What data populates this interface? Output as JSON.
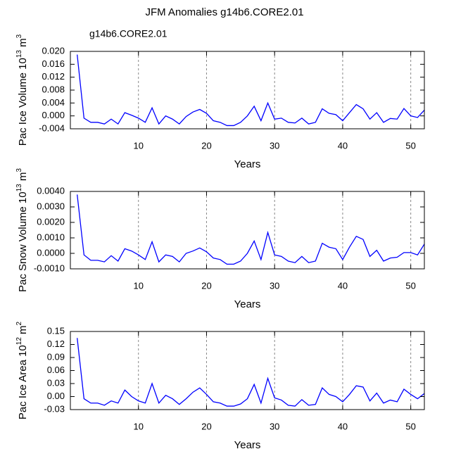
{
  "chart_data": [
    {
      "type": "line",
      "title": "JFM Anomalies g14b6.CORE2.01",
      "subtitle": "g14b6.CORE2.01",
      "ylabel_parts": [
        "Pac Ice Volume 10",
        "13",
        " m",
        "3"
      ],
      "xlabel": "Years",
      "x": [
        1,
        2,
        3,
        4,
        5,
        6,
        7,
        8,
        9,
        10,
        11,
        12,
        13,
        14,
        15,
        16,
        17,
        18,
        19,
        20,
        21,
        22,
        23,
        24,
        25,
        26,
        27,
        28,
        29,
        30,
        31,
        32,
        33,
        34,
        35,
        36,
        37,
        38,
        39,
        40,
        41,
        42,
        43,
        44,
        45,
        46,
        47,
        48,
        49,
        50,
        51,
        52
      ],
      "series": [
        {
          "name": "g14b6.CORE2.01",
          "color": "#0000ff",
          "values": [
            0.019,
            -0.0007,
            -0.002,
            -0.002,
            -0.0025,
            -0.001,
            -0.0025,
            0.001,
            0.0002,
            -0.0007,
            -0.002,
            0.0025,
            -0.0025,
            0.0,
            -0.001,
            -0.0025,
            -0.0002,
            0.0012,
            0.002,
            0.0008,
            -0.0015,
            -0.002,
            -0.003,
            -0.003,
            -0.002,
            0.0,
            0.003,
            -0.0015,
            0.004,
            -0.001,
            -0.0007,
            -0.002,
            -0.0022,
            -0.0007,
            -0.0025,
            -0.002,
            0.0022,
            0.0008,
            0.0004,
            -0.0015,
            0.001,
            0.0035,
            0.0022,
            -0.001,
            0.001,
            -0.002,
            -0.0008,
            -0.001,
            0.0023,
            0.0,
            -0.0005,
            0.0018
          ]
        }
      ],
      "xlim": [
        0,
        52
      ],
      "xticks": [
        10,
        20,
        30,
        40,
        50
      ],
      "ylim": [
        -0.004,
        0.02
      ],
      "yticks": [
        {
          "value": 0.02,
          "label": "0.020"
        },
        {
          "value": 0.016,
          "label": "0.016"
        },
        {
          "value": 0.012,
          "label": "0.012"
        },
        {
          "value": 0.008,
          "label": "0.008"
        },
        {
          "value": 0.004,
          "label": "0.004"
        },
        {
          "value": 0,
          "label": "0.000"
        },
        {
          "value": -0.004,
          "label": "-0.004"
        }
      ],
      "xgrid": true
    },
    {
      "type": "line",
      "ylabel_parts": [
        "Pac Snow Volume 10",
        "13",
        " m",
        "3"
      ],
      "xlabel": "Years",
      "x": [
        1,
        2,
        3,
        4,
        5,
        6,
        7,
        8,
        9,
        10,
        11,
        12,
        13,
        14,
        15,
        16,
        17,
        18,
        19,
        20,
        21,
        22,
        23,
        24,
        25,
        26,
        27,
        28,
        29,
        30,
        31,
        32,
        33,
        34,
        35,
        36,
        37,
        38,
        39,
        40,
        41,
        42,
        43,
        44,
        45,
        46,
        47,
        48,
        49,
        50,
        51,
        52
      ],
      "series": [
        {
          "color": "#0000ff",
          "values": [
            0.0038,
            -0.0001,
            -0.00045,
            -0.00045,
            -0.00055,
            -0.00015,
            -0.0005,
            0.0003,
            0.00015,
            -0.0001,
            -0.0004,
            0.00075,
            -0.00055,
            -0.0001,
            -0.0002,
            -0.00055,
            0.0,
            0.00015,
            0.00035,
            0.0001,
            -0.0003,
            -0.0004,
            -0.0007,
            -0.0007,
            -0.0005,
            0.0,
            0.0008,
            -0.0004,
            0.00135,
            -0.0001,
            -0.0002,
            -0.0005,
            -0.0006,
            -0.0002,
            -0.0006,
            -0.0005,
            0.00065,
            0.0004,
            0.0003,
            -0.0004,
            0.0004,
            0.0011,
            0.0009,
            -0.0002,
            0.0002,
            -0.0005,
            -0.0003,
            -0.00025,
            5e-05,
            5e-05,
            -0.0001,
            0.0006
          ]
        }
      ],
      "xlim": [
        0,
        52
      ],
      "xticks": [
        10,
        20,
        30,
        40,
        50
      ],
      "ylim": [
        -0.001,
        0.004
      ],
      "yticks": [
        {
          "value": 0.004,
          "label": "0.0040"
        },
        {
          "value": 0.003,
          "label": "0.0030"
        },
        {
          "value": 0.002,
          "label": "0.0020"
        },
        {
          "value": 0.001,
          "label": "0.0010"
        },
        {
          "value": 0,
          "label": "0.0000"
        },
        {
          "value": -0.001,
          "label": "-0.0010"
        }
      ],
      "xgrid": true
    },
    {
      "type": "line",
      "ylabel_parts": [
        "Pac Ice Area 10",
        "12",
        " m",
        "2"
      ],
      "xlabel": "Years",
      "x": [
        1,
        2,
        3,
        4,
        5,
        6,
        7,
        8,
        9,
        10,
        11,
        12,
        13,
        14,
        15,
        16,
        17,
        18,
        19,
        20,
        21,
        22,
        23,
        24,
        25,
        26,
        27,
        28,
        29,
        30,
        31,
        32,
        33,
        34,
        35,
        36,
        37,
        38,
        39,
        40,
        41,
        42,
        43,
        44,
        45,
        46,
        47,
        48,
        49,
        50,
        51,
        52
      ],
      "series": [
        {
          "color": "#0000ff",
          "values": [
            0.135,
            -0.005,
            -0.015,
            -0.015,
            -0.02,
            -0.01,
            -0.015,
            0.015,
            0.0,
            -0.01,
            -0.015,
            0.03,
            -0.015,
            0.003,
            -0.005,
            -0.018,
            -0.005,
            0.01,
            0.02,
            0.005,
            -0.012,
            -0.015,
            -0.022,
            -0.022,
            -0.017,
            -0.005,
            0.028,
            -0.015,
            0.042,
            -0.003,
            -0.008,
            -0.02,
            -0.022,
            -0.007,
            -0.02,
            -0.018,
            0.02,
            0.005,
            0.0,
            -0.012,
            0.005,
            0.025,
            0.022,
            -0.01,
            0.008,
            -0.015,
            -0.008,
            -0.012,
            0.017,
            0.005,
            -0.005,
            0.007
          ]
        }
      ],
      "xlim": [
        0,
        52
      ],
      "xticks": [
        10,
        20,
        30,
        40,
        50
      ],
      "ylim": [
        -0.03,
        0.15
      ],
      "yticks": [
        0.15,
        0.12,
        0.09,
        0.06,
        0.03,
        {
          "value": 0,
          "label": "0.00"
        },
        -0.03
      ],
      "xgrid": true
    }
  ]
}
